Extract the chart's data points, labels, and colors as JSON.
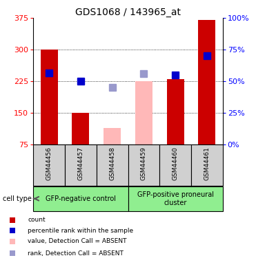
{
  "title": "GDS1068 / 143965_at",
  "samples": [
    "GSM44456",
    "GSM44457",
    "GSM44458",
    "GSM44459",
    "GSM44460",
    "GSM44461"
  ],
  "bar_values": [
    300,
    150,
    null,
    null,
    230,
    370
  ],
  "bar_values_absent": [
    null,
    null,
    115,
    225,
    null,
    null
  ],
  "rank_values": [
    245,
    225,
    null,
    null,
    240,
    285
  ],
  "rank_values_absent": [
    null,
    null,
    210,
    243,
    null,
    null
  ],
  "ylim_left": [
    75,
    375
  ],
  "ylim_right": [
    0,
    100
  ],
  "yticks_left": [
    75,
    150,
    225,
    300,
    375
  ],
  "yticks_right": [
    0,
    25,
    50,
    75,
    100
  ],
  "bar_color": "#cc0000",
  "bar_color_absent": "#ffb8b8",
  "rank_color": "#0000cc",
  "rank_color_absent": "#9999cc",
  "group1_label": "GFP-negative control",
  "group2_label": "GFP-positive proneural\ncluster",
  "group1_indices": [
    0,
    1,
    2
  ],
  "group2_indices": [
    3,
    4,
    5
  ],
  "cell_type_label": "cell type",
  "legend_items": [
    {
      "label": "count",
      "color": "#cc0000"
    },
    {
      "label": "percentile rank within the sample",
      "color": "#0000cc"
    },
    {
      "label": "value, Detection Call = ABSENT",
      "color": "#ffb8b8"
    },
    {
      "label": "rank, Detection Call = ABSENT",
      "color": "#9999cc"
    }
  ],
  "bar_width": 0.55,
  "rank_marker_size": 7,
  "group_box_color": "#90ee90"
}
